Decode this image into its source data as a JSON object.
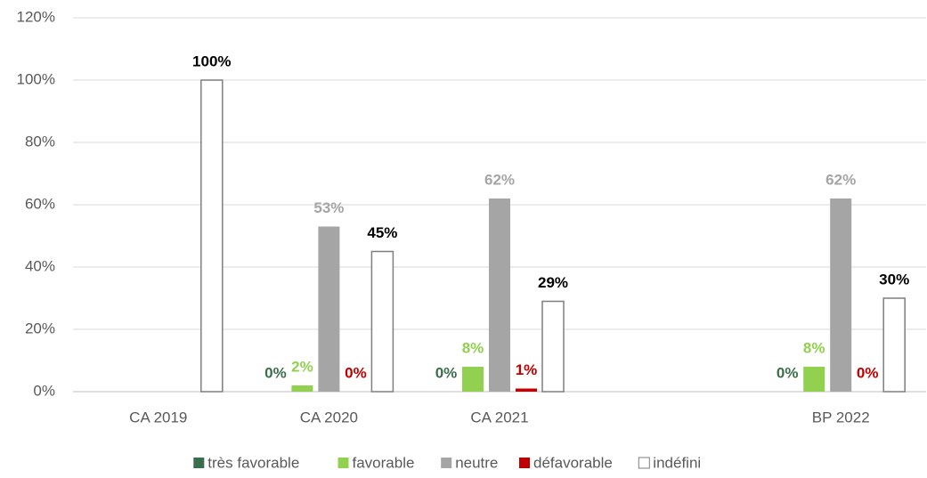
{
  "chart_data": {
    "type": "bar",
    "categories": [
      "CA 2019",
      "CA 2020",
      "CA 2021",
      null,
      "BP 2022"
    ],
    "series": [
      {
        "name": "très favorable",
        "color": "#3b6e4b",
        "label_color": "#3b6e4b",
        "values": [
          null,
          0,
          0,
          null,
          0
        ],
        "value_labels": [
          null,
          "0%",
          "0%",
          null,
          "0%"
        ]
      },
      {
        "name": "favorable",
        "color": "#92d050",
        "label_color": "#92d050",
        "values": [
          null,
          2,
          8,
          null,
          8
        ],
        "value_labels": [
          null,
          "2%",
          "8%",
          null,
          "8%"
        ]
      },
      {
        "name": "neutre",
        "color": "#a5a5a5",
        "label_color": "#a5a5a5",
        "values": [
          null,
          53,
          62,
          null,
          62
        ],
        "value_labels": [
          null,
          "53%",
          "62%",
          null,
          "62%"
        ]
      },
      {
        "name": "défavorable",
        "color": "#c00000",
        "label_color": "#c00000",
        "values": [
          null,
          0,
          1,
          null,
          0
        ],
        "value_labels": [
          null,
          "0%",
          "1%",
          null,
          "0%"
        ]
      },
      {
        "name": "indéfini",
        "color": "#ffffff",
        "border_color": "#7f7f7f",
        "label_color": "#000000",
        "values": [
          100,
          45,
          29,
          null,
          30
        ],
        "value_labels": [
          "100%",
          "45%",
          "29%",
          null,
          "30%"
        ]
      }
    ],
    "ylim": [
      0,
      120
    ],
    "yticks": [
      {
        "value": 0,
        "label": "0%"
      },
      {
        "value": 20,
        "label": "20%"
      },
      {
        "value": 40,
        "label": "40%"
      },
      {
        "value": 60,
        "label": "60%"
      },
      {
        "value": 80,
        "label": "80%"
      },
      {
        "value": 100,
        "label": "100%"
      },
      {
        "value": 120,
        "label": "120%"
      }
    ],
    "grid": true,
    "legend": "bottom"
  }
}
